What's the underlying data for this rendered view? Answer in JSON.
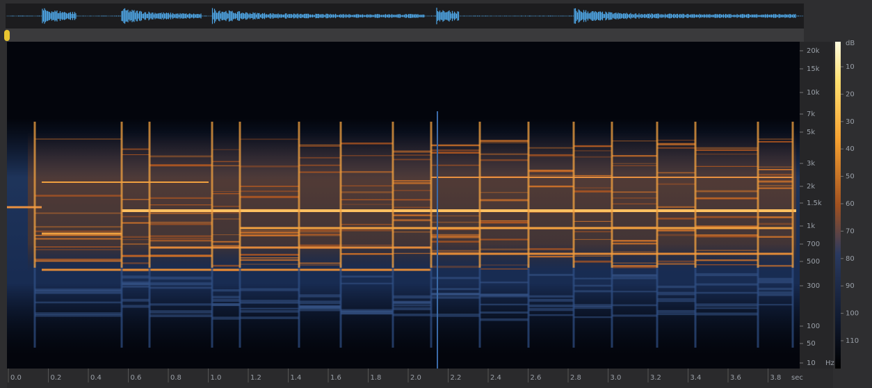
{
  "frequency_axis": {
    "labels": [
      "20k",
      "15k",
      "10k",
      "7k",
      "5k",
      "3k",
      "2k",
      "1.5k",
      "1k",
      "700",
      "500",
      "300",
      "100",
      "50",
      "10"
    ],
    "unit": "Hz"
  },
  "db_scale": {
    "unit": "dB",
    "labels": [
      "10",
      "20",
      "30",
      "40",
      "50",
      "60",
      "70",
      "80",
      "90",
      "100",
      "110"
    ]
  },
  "time_axis": {
    "labels": [
      "0.0",
      "0.2",
      "0.4",
      "0.6",
      "0.8",
      "1.0",
      "1.2",
      "1.4",
      "1.6",
      "1.8",
      "2.0",
      "2.2",
      "2.4",
      "2.6",
      "2.8",
      "3.0",
      "3.2",
      "3.4",
      "3.6",
      "3.8"
    ],
    "unit": "sec"
  }
}
